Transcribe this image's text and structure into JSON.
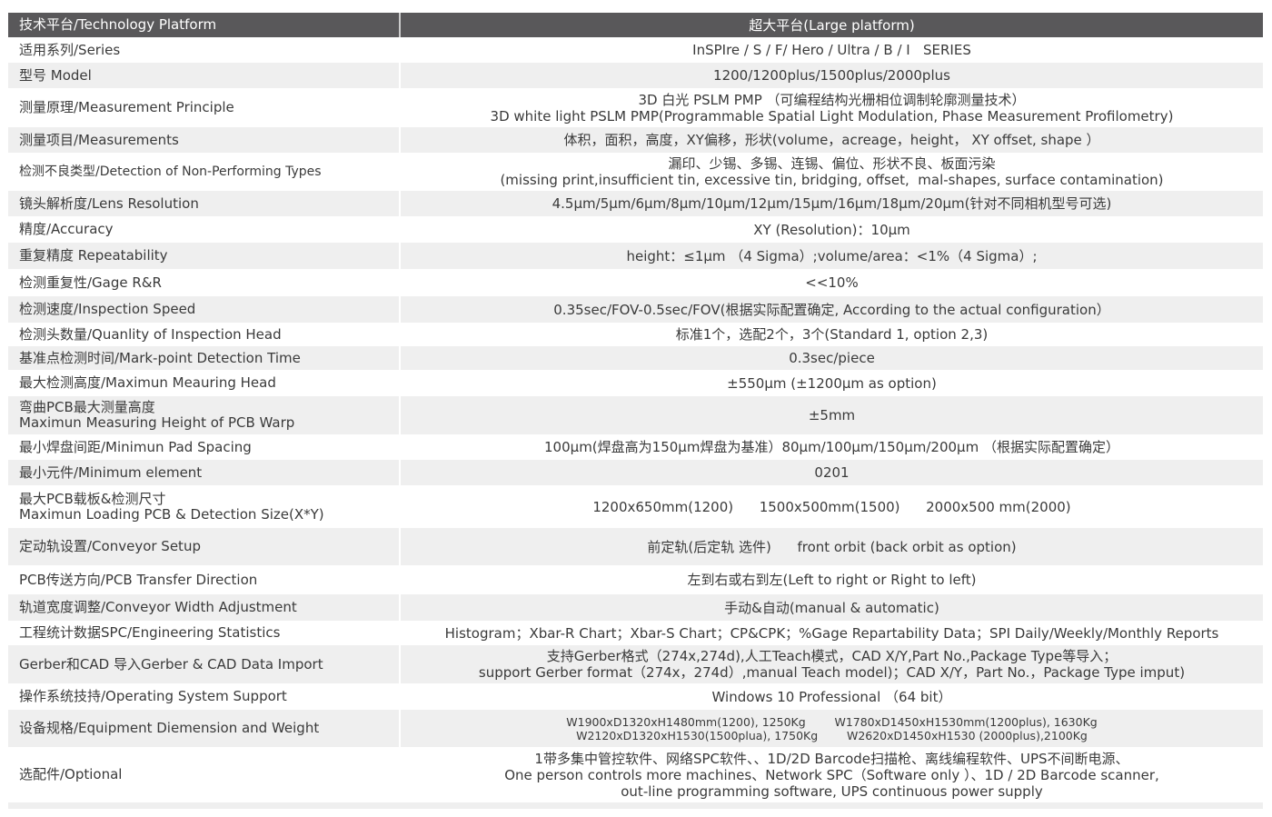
{
  "header": {
    "label": "技术平台/Technology Platform",
    "value": "超大平台(Large platform)"
  },
  "colors": {
    "header_bg": "#59585a",
    "stripe": "#efefef"
  },
  "rows": [
    {
      "label": [
        "适用系列/Series"
      ],
      "value": [
        "InSPIre / S / F/ Hero / Ultra / B / I   SERIES"
      ]
    },
    {
      "label": [
        "型号 Model"
      ],
      "value": [
        "1200/1200plus/1500plus/2000plus"
      ]
    },
    {
      "label": [
        "测量原理/Measurement Principle"
      ],
      "value": [
        "3D 白光 PSLM PMP （可编程结构光栅相位调制轮廓测量技术）",
        "3D white light PSLM PMP(Programmable Spatial Light Modulation, Phase Measurement Profilometry)"
      ]
    },
    {
      "label": [
        "测量项目/Measurements"
      ],
      "value": [
        "体积，面积，高度，XY偏移，形状(volume，acreage，height， XY offset, shape ）"
      ]
    },
    {
      "label": [
        "检测不良类型/Detection of Non-Performing Types"
      ],
      "value": [
        "漏印、少锡、多锡、连锡、偏位、形状不良、板面污染",
        "(missing print,insufficient tin, excessive tin, bridging, offset,  mal-shapes, surface contamination)"
      ]
    },
    {
      "label": [
        "镜头解析度/Lens Resolution"
      ],
      "value": [
        "4.5μm/5μm/6μm/8μm/10μm/12μm/15μm/16μm/18μm/20μm(针对不同相机型号可选)"
      ]
    },
    {
      "label": [
        "精度/Accuracy"
      ],
      "value": [
        "XY (Resolution)：10μm"
      ]
    },
    {
      "label": [
        "重复精度 Repeatability"
      ],
      "value": [
        "height：≤1μm （4 Sigma）;volume/area：<1%（4 Sigma）;"
      ]
    },
    {
      "label": [
        "检测重复性/Gage R&R"
      ],
      "value": [
        "<<10%"
      ]
    },
    {
      "label": [
        "检测速度/Inspection Speed"
      ],
      "value": [
        "0.35sec/FOV-0.5sec/FOV(根据实际配置确定, According to the actual configuration）"
      ]
    },
    {
      "label": [
        "检测头数量/Quanlity of Inspection Head"
      ],
      "value": [
        "标准1个，选配2个，3个(Standard 1, option 2,3)"
      ]
    },
    {
      "label": [
        "基准点检测时间/Mark-point Detection Time"
      ],
      "value": [
        "0.3sec/piece"
      ]
    },
    {
      "label": [
        "最大检测高度/Maximun Meauring Head"
      ],
      "value": [
        "±550μm (±1200μm as option)"
      ]
    },
    {
      "label": [
        "弯曲PCB最大测量高度",
        "Maximun Measuring Height of PCB Warp"
      ],
      "value": [
        "±5mm"
      ]
    },
    {
      "label": [
        "最小焊盘间距/Minimun Pad Spacing"
      ],
      "value": [
        "100μm(焊盘高为150μm焊盘为基准）80μm/100μm/150μm/200μm （根据实际配置确定）"
      ]
    },
    {
      "label": [
        "最小元件/Minimum element"
      ],
      "value": [
        "0201"
      ]
    },
    {
      "label": [
        "最大PCB载板&检测尺寸",
        "Maximun Loading PCB & Detection Size(X*Y)"
      ],
      "value": [
        "1200x650mm(1200)      1500x500mm(1500)      2000x500 mm(2000)"
      ]
    },
    {
      "label": [
        "定动轨设置/Conveyor Setup"
      ],
      "value": [
        "前定轨(后定轨 选件)      front orbit (back orbit as option)"
      ]
    },
    {
      "label": [
        "PCB传送方向/PCB Transfer Direction"
      ],
      "value": [
        "左到右或右到左(Left to right or Right to left)"
      ]
    },
    {
      "label": [
        "轨道宽度调整/Conveyor Width Adjustment"
      ],
      "value": [
        "手动&自动(manual & automatic)"
      ]
    },
    {
      "label": [
        "工程统计数据SPC/Engineering Statistics"
      ],
      "value": [
        "Histogram；Xbar-R Chart；Xbar-S Chart；CP&CPK；%Gage Repartability Data；SPI Daily/Weekly/Monthly Reports"
      ]
    },
    {
      "label": [
        "Gerber和CAD 导入Gerber & CAD Data Import"
      ],
      "value": [
        "支持Gerber格式（274x,274d),人工Teach模式，CAD X/Y,Part No.,Package Type等导入；",
        "support Gerber format（274x，274d）,manual Teach model)；CAD X/Y，Part No.，Package Type imput)"
      ]
    },
    {
      "label": [
        "操作系统技持/Operating System Support"
      ],
      "value": [
        "Windows 10 Professional （64 bit）"
      ]
    },
    {
      "label": [
        "设备规格/Equipment Diemension and Weight"
      ],
      "value": [
        "W1900xD1320xH1480mm(1200), 1250Kg        W1780xD1450xH1530mm(1200plus), 1630Kg",
        "W2120xD1320xH1530(1500plua), 1750Kg        W2620xD1450xH1530 (2000plus),2100Kg"
      ]
    },
    {
      "label": [
        "选配件/Optional"
      ],
      "value": [
        "1带多集中管控软件、网络SPC软件、、1D/2D Barcode扫描枪、离线编程软件、UPS不间断电源、",
        "One person controls more machines、Network SPC（Software only ）、1D / 2D Barcode scanner,",
        "out-line programming software, UPS continuous power supply"
      ]
    }
  ]
}
